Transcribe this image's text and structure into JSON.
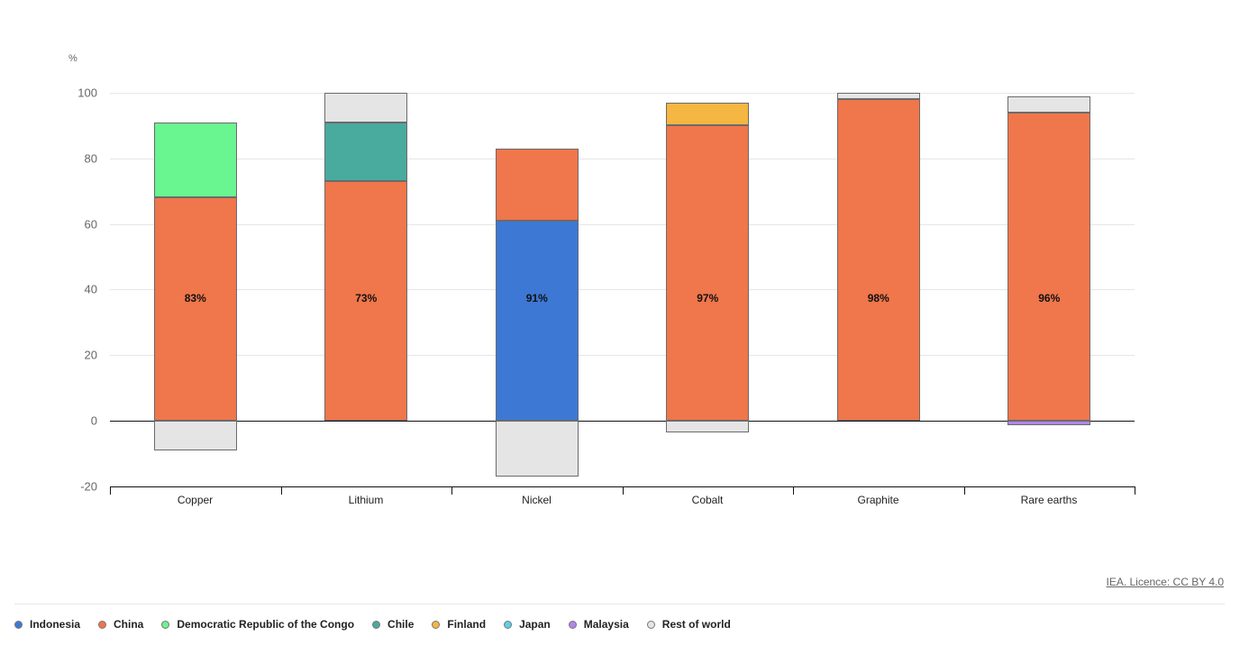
{
  "chart_data": {
    "type": "bar",
    "stacked": true,
    "title": "",
    "ylabel": "%",
    "xlabel": "",
    "ylim": [
      -20,
      100
    ],
    "yticks": [
      100,
      80,
      60,
      40,
      20,
      0,
      -20
    ],
    "grid": true,
    "legend_position": "bottom",
    "categories": [
      "Copper",
      "Lithium",
      "Nickel",
      "Cobalt",
      "Graphite",
      "Rare earths"
    ],
    "bar_labels": [
      "83%",
      "73%",
      "91%",
      "97%",
      "98%",
      "96%"
    ],
    "series": [
      {
        "name": "Indonesia",
        "color": "#3d78d4",
        "values": [
          0,
          0,
          61,
          0,
          0,
          0
        ]
      },
      {
        "name": "China",
        "color": "#f0764b",
        "values": [
          68,
          73,
          22,
          90,
          98,
          94
        ]
      },
      {
        "name": "Democratic Republic of the Congo",
        "color": "#69f58f",
        "values": [
          23,
          0,
          0,
          0,
          0,
          0
        ]
      },
      {
        "name": "Chile",
        "color": "#49aa9e",
        "values": [
          0,
          18,
          0,
          0,
          0,
          0
        ]
      },
      {
        "name": "Finland",
        "color": "#f5b642",
        "values": [
          0,
          0,
          0,
          7,
          0,
          0
        ]
      },
      {
        "name": "Japan",
        "color": "#5bd0ea",
        "values": [
          0,
          0,
          0,
          0,
          0,
          0
        ]
      },
      {
        "name": "Malaysia",
        "color": "#b286e8",
        "values": [
          0,
          0,
          0,
          0,
          0,
          -1.3
        ]
      },
      {
        "name": "Rest of world",
        "color": "#e5e5e5",
        "values": [
          -9,
          9,
          -17,
          -3.5,
          2,
          5
        ]
      }
    ]
  },
  "axis": {
    "unit": "%"
  },
  "credit": "IEA. Licence: CC BY 4.0"
}
